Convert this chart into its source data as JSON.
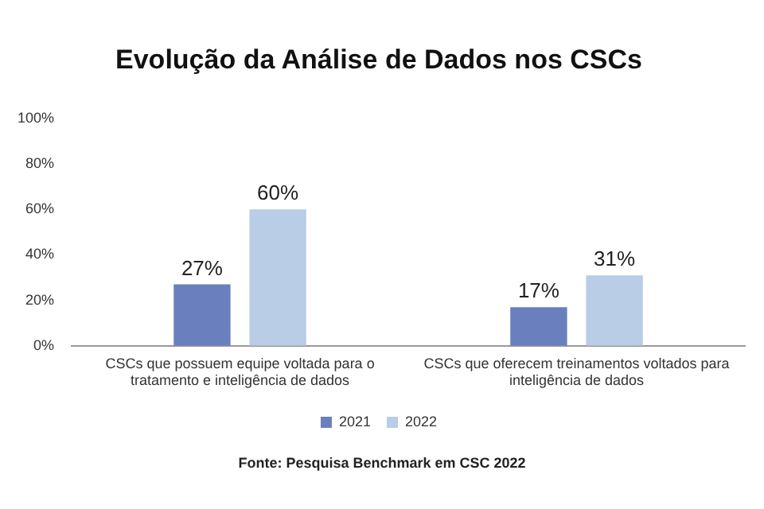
{
  "chart_data": {
    "type": "bar",
    "title": "Evolução da Análise de Dados nos CSCs",
    "categories": [
      "CSCs que possuem equipe voltada para o tratamento e inteligência de dados",
      "CSCs que oferecem treinamentos voltados para inteligência de dados"
    ],
    "series": [
      {
        "name": "2021",
        "color": "#6a7fbd",
        "values": [
          27,
          17
        ],
        "value_labels": [
          "27%",
          "17%"
        ]
      },
      {
        "name": "2022",
        "color": "#b9cde6",
        "values": [
          60,
          31
        ],
        "value_labels": [
          "60%",
          "31%"
        ]
      }
    ],
    "ylim": [
      0,
      100
    ],
    "yticks": [
      {
        "value": 0,
        "label": "0%"
      },
      {
        "value": 20,
        "label": "20%"
      },
      {
        "value": 40,
        "label": "40%"
      },
      {
        "value": 60,
        "label": "60%"
      },
      {
        "value": 80,
        "label": "80%"
      },
      {
        "value": 100,
        "label": "100%"
      }
    ],
    "grid": false,
    "legend": "bottom",
    "annotations": [
      "Fonte: Pesquisa Benchmark em CSC 2022"
    ]
  }
}
